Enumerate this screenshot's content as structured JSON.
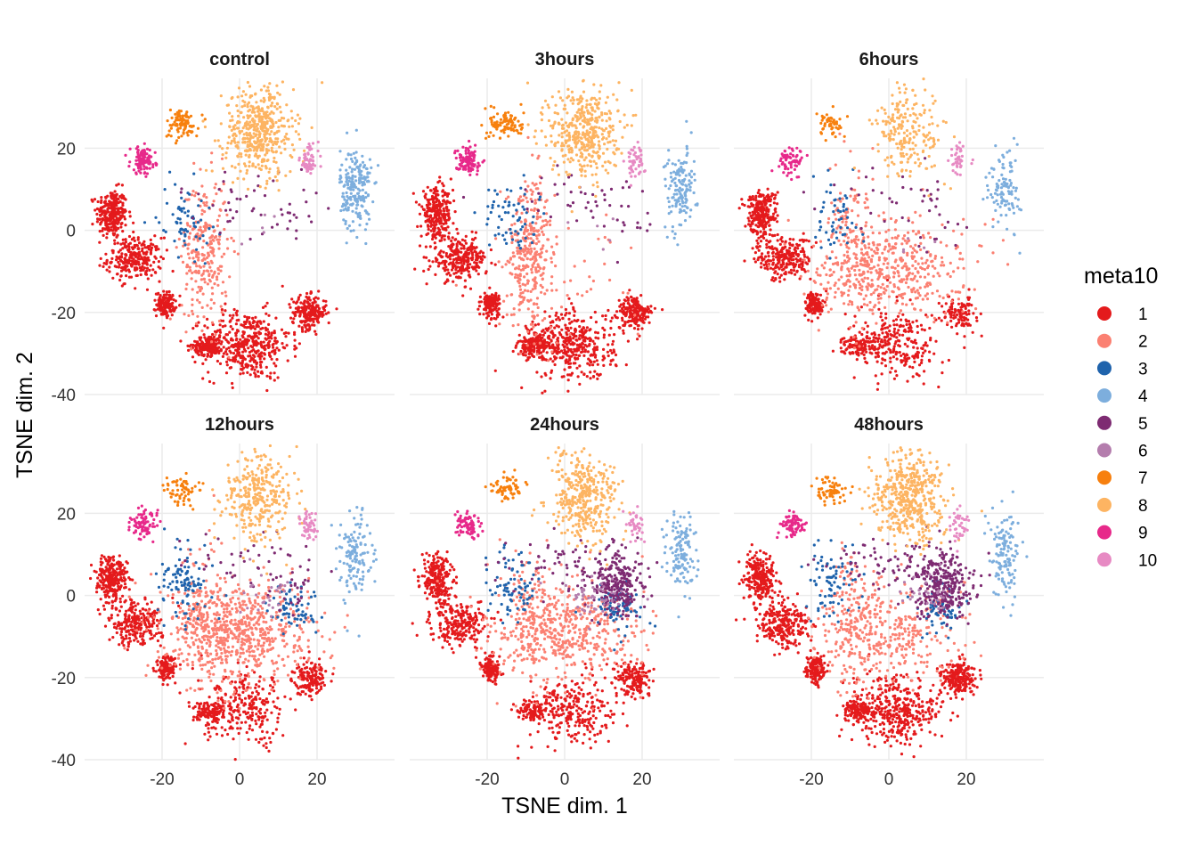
{
  "chart_data": {
    "type": "scatter",
    "facet_by": "time",
    "panels": [
      "control",
      "3hours",
      "6hours",
      "12hours",
      "24hours",
      "48hours"
    ],
    "xlabel": "TSNE dim. 1",
    "ylabel": "TSNE dim. 2",
    "xlim": [
      -40,
      40
    ],
    "ylim": [
      -40,
      37
    ],
    "x_ticks": [
      -20,
      0,
      20
    ],
    "y_ticks": [
      -40,
      -20,
      0,
      20
    ],
    "grid": true,
    "legend": {
      "title": "meta10",
      "position": "right",
      "items": [
        {
          "label": "1",
          "color": "#E41A1C"
        },
        {
          "label": "2",
          "color": "#FB8072"
        },
        {
          "label": "3",
          "color": "#1F63AC"
        },
        {
          "label": "4",
          "color": "#7DAEDD"
        },
        {
          "label": "5",
          "color": "#7E2B72"
        },
        {
          "label": "6",
          "color": "#B47DAD"
        },
        {
          "label": "7",
          "color": "#F7800E"
        },
        {
          "label": "8",
          "color": "#FDB462"
        },
        {
          "label": "9",
          "color": "#E7298A"
        },
        {
          "label": "10",
          "color": "#E78AC3"
        }
      ]
    },
    "clusters": [
      {
        "label": "1",
        "x": -33,
        "y": 4,
        "sx": 2.0,
        "sy": 3.0,
        "w": [
          1,
          1,
          1,
          1,
          0.9,
          0.9
        ]
      },
      {
        "label": "1",
        "x": -27,
        "y": -7,
        "sx": 3.5,
        "sy": 2.6,
        "w": [
          1,
          1,
          0.9,
          0.9,
          0.9,
          1
        ]
      },
      {
        "label": "1",
        "x": -19,
        "y": -18,
        "sx": 1.2,
        "sy": 1.5,
        "w": [
          0.5,
          0.5,
          0.5,
          0.5,
          0.5,
          0.6
        ]
      },
      {
        "label": "1",
        "x": 2,
        "y": -28,
        "sx": 5.5,
        "sy": 4.2,
        "w": [
          1.6,
          1.5,
          1.0,
          1.0,
          1.0,
          1.5
        ]
      },
      {
        "label": "1",
        "x": -8,
        "y": -28,
        "sx": 2.0,
        "sy": 1.2,
        "w": [
          0.6,
          0.6,
          0.4,
          0.4,
          0.4,
          0.5
        ]
      },
      {
        "label": "1",
        "x": 18,
        "y": -20,
        "sx": 2.2,
        "sy": 2.0,
        "w": [
          0.8,
          0.7,
          0.4,
          0.6,
          0.6,
          0.8
        ]
      },
      {
        "label": "2",
        "x": -9,
        "y": -5,
        "sx": 3.0,
        "sy": 9.0,
        "w": [
          1.0,
          1.2,
          0.5,
          0.5,
          0.4,
          0.5
        ]
      },
      {
        "label": "2",
        "x": 0,
        "y": -9,
        "sx": 9.5,
        "sy": 6.0,
        "w": [
          0,
          0.2,
          1.8,
          2.6,
          1.9,
          1.3
        ]
      },
      {
        "label": "3",
        "x": -14,
        "y": 3,
        "sx": 3.5,
        "sy": 4.5,
        "w": [
          0.25,
          0.25,
          0.2,
          0.4,
          0.3,
          0.3
        ]
      },
      {
        "label": "3",
        "x": 14,
        "y": -3,
        "sx": 3.0,
        "sy": 3.0,
        "w": [
          0,
          0,
          0,
          0.25,
          0.3,
          0.25
        ]
      },
      {
        "label": "4",
        "x": 30,
        "y": 10,
        "sx": 2.0,
        "sy": 5.0,
        "w": [
          0.8,
          0.55,
          0.4,
          0.5,
          0.5,
          0.5
        ]
      },
      {
        "label": "5",
        "x": 14,
        "y": 2,
        "sx": 3.5,
        "sy": 3.5,
        "w": [
          0.05,
          0.05,
          0.05,
          0.1,
          0.9,
          1.1
        ]
      },
      {
        "label": "5",
        "x": 2,
        "y": 8,
        "sx": 9.0,
        "sy": 3.5,
        "w": [
          0.15,
          0.15,
          0.12,
          0.15,
          0.3,
          0.35
        ]
      },
      {
        "label": "6",
        "x": 8,
        "y": 0,
        "sx": 4.0,
        "sy": 3.0,
        "w": [
          0.02,
          0.02,
          0.02,
          0.1,
          0.2,
          0.1
        ]
      },
      {
        "label": "7",
        "x": -15,
        "y": 26,
        "sx": 2.2,
        "sy": 1.8,
        "w": [
          0.35,
          0.35,
          0.2,
          0.25,
          0.25,
          0.25
        ]
      },
      {
        "label": "8",
        "x": 5,
        "y": 24,
        "sx": 4.5,
        "sy": 5.5,
        "w": [
          1.8,
          1.6,
          0.8,
          1.2,
          1.4,
          1.9
        ]
      },
      {
        "label": "9",
        "x": -25,
        "y": 17,
        "sx": 1.6,
        "sy": 1.6,
        "w": [
          0.4,
          0.4,
          0.25,
          0.35,
          0.3,
          0.3
        ]
      },
      {
        "label": "10",
        "x": 18,
        "y": 17,
        "sx": 1.2,
        "sy": 2.0,
        "w": [
          0.25,
          0.2,
          0.15,
          0.2,
          0.15,
          0.15
        ]
      }
    ]
  }
}
